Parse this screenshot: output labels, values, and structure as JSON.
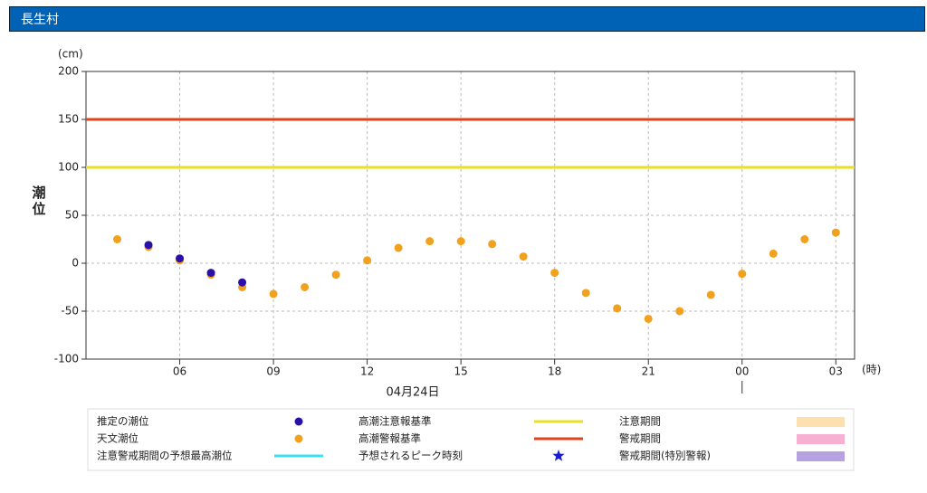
{
  "header": {
    "title": "長生村"
  },
  "chart_data": {
    "type": "scatter",
    "y_unit": "(cm)",
    "y_label": "潮位",
    "x_unit": "(時)",
    "date_label": "04月24日",
    "xlim": [
      3,
      27.6
    ],
    "ylim": [
      -100,
      200
    ],
    "xticks": [
      {
        "value": 6,
        "label": "06"
      },
      {
        "value": 9,
        "label": "09"
      },
      12,
      15,
      18,
      21,
      {
        "value": 24,
        "label": "00"
      },
      {
        "value": 27,
        "label": "03"
      }
    ],
    "yticks": [
      -100,
      -50,
      0,
      50,
      100,
      150,
      200
    ],
    "grid": true,
    "series": [
      {
        "name": "推定の潮位",
        "color": "#2a0fa8",
        "x": [
          5,
          6,
          7,
          8
        ],
        "values": [
          19,
          5,
          -10,
          -20
        ]
      },
      {
        "name": "天文潮位",
        "color": "#f2a11e",
        "x": [
          4,
          5,
          6,
          7,
          8,
          9,
          10,
          11,
          12,
          13,
          14,
          15,
          16,
          17,
          18,
          19,
          20,
          21,
          22,
          23,
          24,
          25,
          26,
          27
        ],
        "values": [
          25,
          17,
          3,
          -12,
          -25,
          -32,
          -25,
          -12,
          3,
          16,
          23,
          23,
          20,
          7,
          -10,
          -31,
          -47,
          -58,
          -50,
          -33,
          -11,
          10,
          25,
          32
        ]
      }
    ],
    "reference_lines": [
      {
        "name": "高潮注意報基準",
        "value": 100,
        "color": "#e8e023"
      },
      {
        "name": "高潮警報基準",
        "value": 150,
        "color": "#e0421a"
      }
    ],
    "legend_items": [
      {
        "name": "注意警戒期間の予想最高潮位",
        "symbol": "line",
        "color": "#3de0f0"
      },
      {
        "name": "予想されるピーク時刻",
        "symbol": "star",
        "color": "#1a1ad0"
      },
      {
        "name": "注意期間",
        "symbol": "box",
        "color": "#fddfb0"
      },
      {
        "name": "警戒期間",
        "symbol": "box",
        "color": "#f8b0d2"
      },
      {
        "name": "警戒期間(特別警報)",
        "symbol": "box",
        "color": "#b6a2e2"
      }
    ]
  }
}
